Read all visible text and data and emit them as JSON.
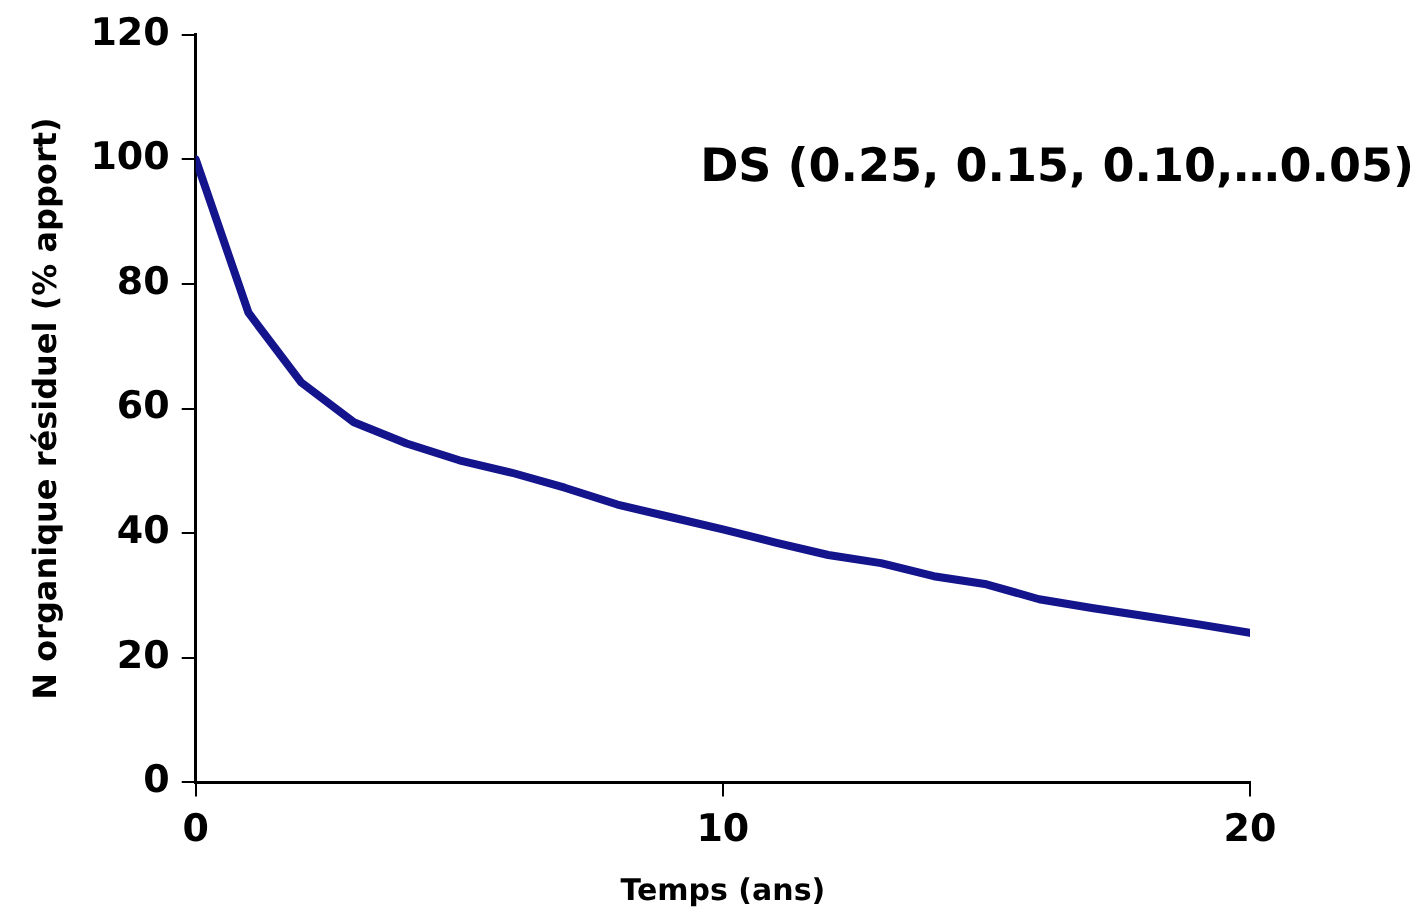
{
  "chart_data": {
    "type": "line",
    "xlabel": "Temps (ans)",
    "ylabel": "N organique résiduel (% apport)",
    "annotations": [
      "DS (0.25, 0.15, 0.10,…0.05)"
    ],
    "x": [
      0,
      1,
      2,
      3,
      4,
      5,
      6,
      7,
      8,
      9,
      10,
      11,
      12,
      13,
      14,
      15,
      16,
      17,
      18,
      19,
      20
    ],
    "series": [
      {
        "color": "#14148c",
        "values": [
          100,
          75.4,
          64.2,
          57.8,
          54.4,
          51.7,
          49.7,
          47.3,
          44.6,
          42.6,
          40.6,
          38.5,
          36.5,
          35.2,
          33.1,
          31.8,
          29.4,
          28,
          26.7,
          25.4,
          24
        ]
      }
    ],
    "xlim": [
      0,
      20
    ],
    "xticks": [
      0,
      10,
      20
    ],
    "ylim": [
      0,
      120
    ],
    "yticks": [
      0,
      20,
      40,
      60,
      80,
      100,
      120
    ],
    "grid": false,
    "legend": false,
    "marker": "none",
    "line_style": "solid"
  }
}
